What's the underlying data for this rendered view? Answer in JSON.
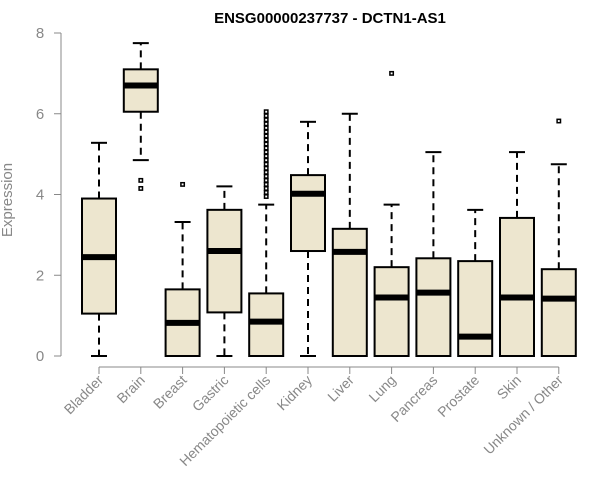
{
  "chart_data": {
    "type": "boxplot",
    "title": "ENSG00000237737 - DCTN1-AS1",
    "ylabel": "Expression",
    "xlabel": "",
    "ylim": [
      0,
      8
    ],
    "yticks": [
      0,
      2,
      4,
      6,
      8
    ],
    "box_fill": "#ede6cf",
    "categories": [
      "Bladder",
      "Brain",
      "Breast",
      "Gastric",
      "Hematopoietic cells",
      "Kidney",
      "Liver",
      "Lung",
      "Pancreas",
      "Prostate",
      "Skin",
      "Unknown / Other"
    ],
    "boxes": [
      {
        "min": 0.0,
        "q1": 1.05,
        "median": 2.45,
        "q3": 3.9,
        "max": 5.28,
        "outliers": []
      },
      {
        "min": 4.85,
        "q1": 6.05,
        "median": 6.7,
        "q3": 7.1,
        "max": 7.75,
        "outliers": [
          4.15,
          4.35
        ]
      },
      {
        "min": 0.0,
        "q1": 0.0,
        "median": 0.82,
        "q3": 1.65,
        "max": 3.32,
        "outliers": [
          4.25
        ]
      },
      {
        "min": 0.0,
        "q1": 1.08,
        "median": 2.6,
        "q3": 3.62,
        "max": 4.2,
        "outliers": []
      },
      {
        "min": 0.0,
        "q1": 0.0,
        "median": 0.85,
        "q3": 1.55,
        "max": 3.75,
        "outliers": [
          3.95,
          4.05,
          4.15,
          4.25,
          4.35,
          4.45,
          4.55,
          4.65,
          4.75,
          4.85,
          4.95,
          5.05,
          5.15,
          5.25,
          5.35,
          5.45,
          5.55,
          5.65,
          5.75,
          5.85,
          5.95,
          6.05
        ]
      },
      {
        "min": 0.0,
        "q1": 2.6,
        "median": 4.02,
        "q3": 4.48,
        "max": 5.8,
        "outliers": []
      },
      {
        "min": 0.0,
        "q1": 0.0,
        "median": 2.58,
        "q3": 3.15,
        "max": 6.0,
        "outliers": []
      },
      {
        "min": 0.0,
        "q1": 0.0,
        "median": 1.45,
        "q3": 2.2,
        "max": 3.75,
        "outliers": [
          7.0
        ]
      },
      {
        "min": 0.0,
        "q1": 0.0,
        "median": 1.57,
        "q3": 2.42,
        "max": 5.05,
        "outliers": []
      },
      {
        "min": 0.0,
        "q1": 0.0,
        "median": 0.48,
        "q3": 2.35,
        "max": 3.62,
        "outliers": []
      },
      {
        "min": 0.0,
        "q1": 0.0,
        "median": 1.45,
        "q3": 3.42,
        "max": 5.05,
        "outliers": []
      },
      {
        "min": 0.0,
        "q1": 0.0,
        "median": 1.42,
        "q3": 2.15,
        "max": 4.75,
        "outliers": [
          5.82
        ]
      }
    ]
  }
}
